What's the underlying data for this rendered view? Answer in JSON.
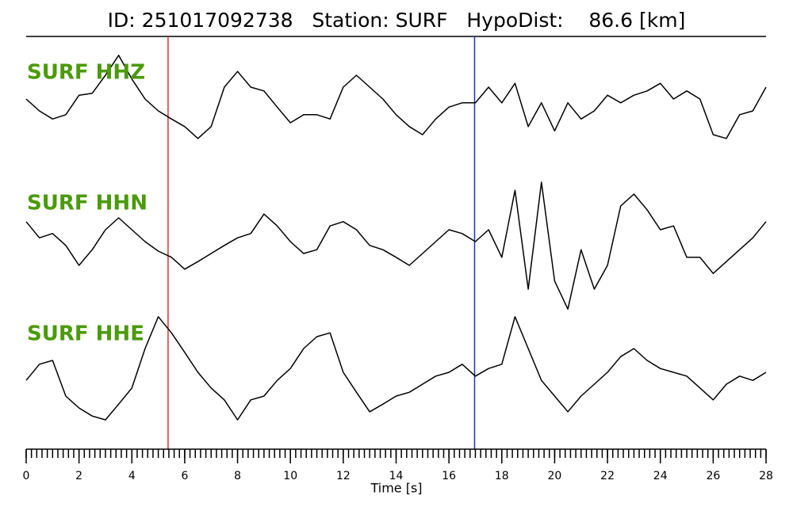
{
  "chart_data": {
    "type": "line",
    "title": "ID: 251017092738   Station: SURF   HypoDist:    86.6 [km]",
    "xlabel": "Time [s]",
    "xlim": [
      0,
      28
    ],
    "xticks": [
      0,
      2,
      4,
      6,
      8,
      10,
      12,
      14,
      16,
      18,
      20,
      22,
      24,
      26,
      28
    ],
    "minor_tick_step": 0.2,
    "ylim": [
      -1.5,
      1.5
    ],
    "x": [
      0,
      0.5,
      1,
      1.5,
      2,
      2.5,
      3,
      3.5,
      4,
      4.5,
      5,
      5.5,
      6,
      6.5,
      7,
      7.5,
      8,
      8.5,
      9,
      9.5,
      10,
      10.5,
      11,
      11.5,
      12,
      12.5,
      13,
      13.5,
      14,
      14.5,
      15,
      15.5,
      16,
      16.5,
      17,
      17.5,
      18,
      18.5,
      19,
      19.5,
      20,
      20.5,
      21,
      21.5,
      22,
      22.5,
      23,
      23.5,
      24,
      24.5,
      25,
      25.5,
      26,
      26.5,
      27,
      27.5,
      28
    ],
    "series": [
      {
        "name": "SURF HHZ",
        "color": "#000000",
        "label_color": "#4b9a0b",
        "values": [
          0.25,
          0,
          -0.17,
          -0.08,
          0.33,
          0.37,
          0.75,
          1.17,
          0.67,
          0.25,
          0,
          -0.17,
          -0.33,
          -0.58,
          -0.33,
          0.5,
          0.83,
          0.5,
          0.42,
          0.08,
          -0.25,
          -0.08,
          -0.08,
          -0.17,
          0.5,
          0.75,
          0.5,
          0.25,
          -0.08,
          -0.33,
          -0.5,
          -0.17,
          0.08,
          0.17,
          0.17,
          0.5,
          0.17,
          0.58,
          -0.33,
          0.17,
          -0.42,
          0.17,
          -0.17,
          0,
          0.33,
          0.17,
          0.33,
          0.42,
          0.58,
          0.25,
          0.42,
          0.25,
          -0.5,
          -0.58,
          -0.08,
          0,
          0.5
        ]
      },
      {
        "name": "SURF HHN",
        "color": "#000000",
        "label_color": "#4b9a0b",
        "values": [
          0.42,
          0.08,
          0.17,
          -0.08,
          -0.5,
          -0.17,
          0.25,
          0.5,
          0.25,
          0,
          -0.2,
          -0.33,
          -0.58,
          -0.42,
          -0.25,
          -0.08,
          0.08,
          0.17,
          0.58,
          0.33,
          0,
          -0.25,
          -0.17,
          0.33,
          0.42,
          0.25,
          -0.08,
          -0.17,
          -0.33,
          -0.5,
          -0.25,
          0,
          0.25,
          0.17,
          0,
          0.25,
          -0.33,
          1.08,
          -1.0,
          1.25,
          -0.83,
          -1.42,
          -0.17,
          -1.0,
          -0.5,
          0.75,
          1.0,
          0.67,
          0.25,
          0.33,
          -0.33,
          -0.33,
          -0.67,
          -0.42,
          -0.17,
          0.08,
          0.42
        ]
      },
      {
        "name": "SURF HHE",
        "color": "#000000",
        "label_color": "#4b9a0b",
        "values": [
          -0.17,
          0.17,
          0.25,
          -0.5,
          -0.75,
          -0.92,
          -1.0,
          -0.67,
          -0.33,
          0.5,
          1.17,
          0.83,
          0.42,
          0,
          -0.33,
          -0.58,
          -1.0,
          -0.58,
          -0.5,
          -0.17,
          0.08,
          0.5,
          0.75,
          0.83,
          0,
          -0.42,
          -0.83,
          -0.67,
          -0.5,
          -0.42,
          -0.25,
          -0.08,
          0,
          0.17,
          -0.08,
          0.08,
          0.17,
          1.17,
          0.5,
          -0.17,
          -0.5,
          -0.83,
          -0.5,
          -0.25,
          0,
          0.33,
          0.5,
          0.25,
          0.08,
          0,
          -0.08,
          -0.33,
          -0.58,
          -0.25,
          -0.08,
          -0.17,
          0
        ]
      }
    ],
    "markers": [
      {
        "x": 5.37,
        "color": "#e03030"
      },
      {
        "x": 16.97,
        "color": "#2030c0"
      }
    ]
  }
}
